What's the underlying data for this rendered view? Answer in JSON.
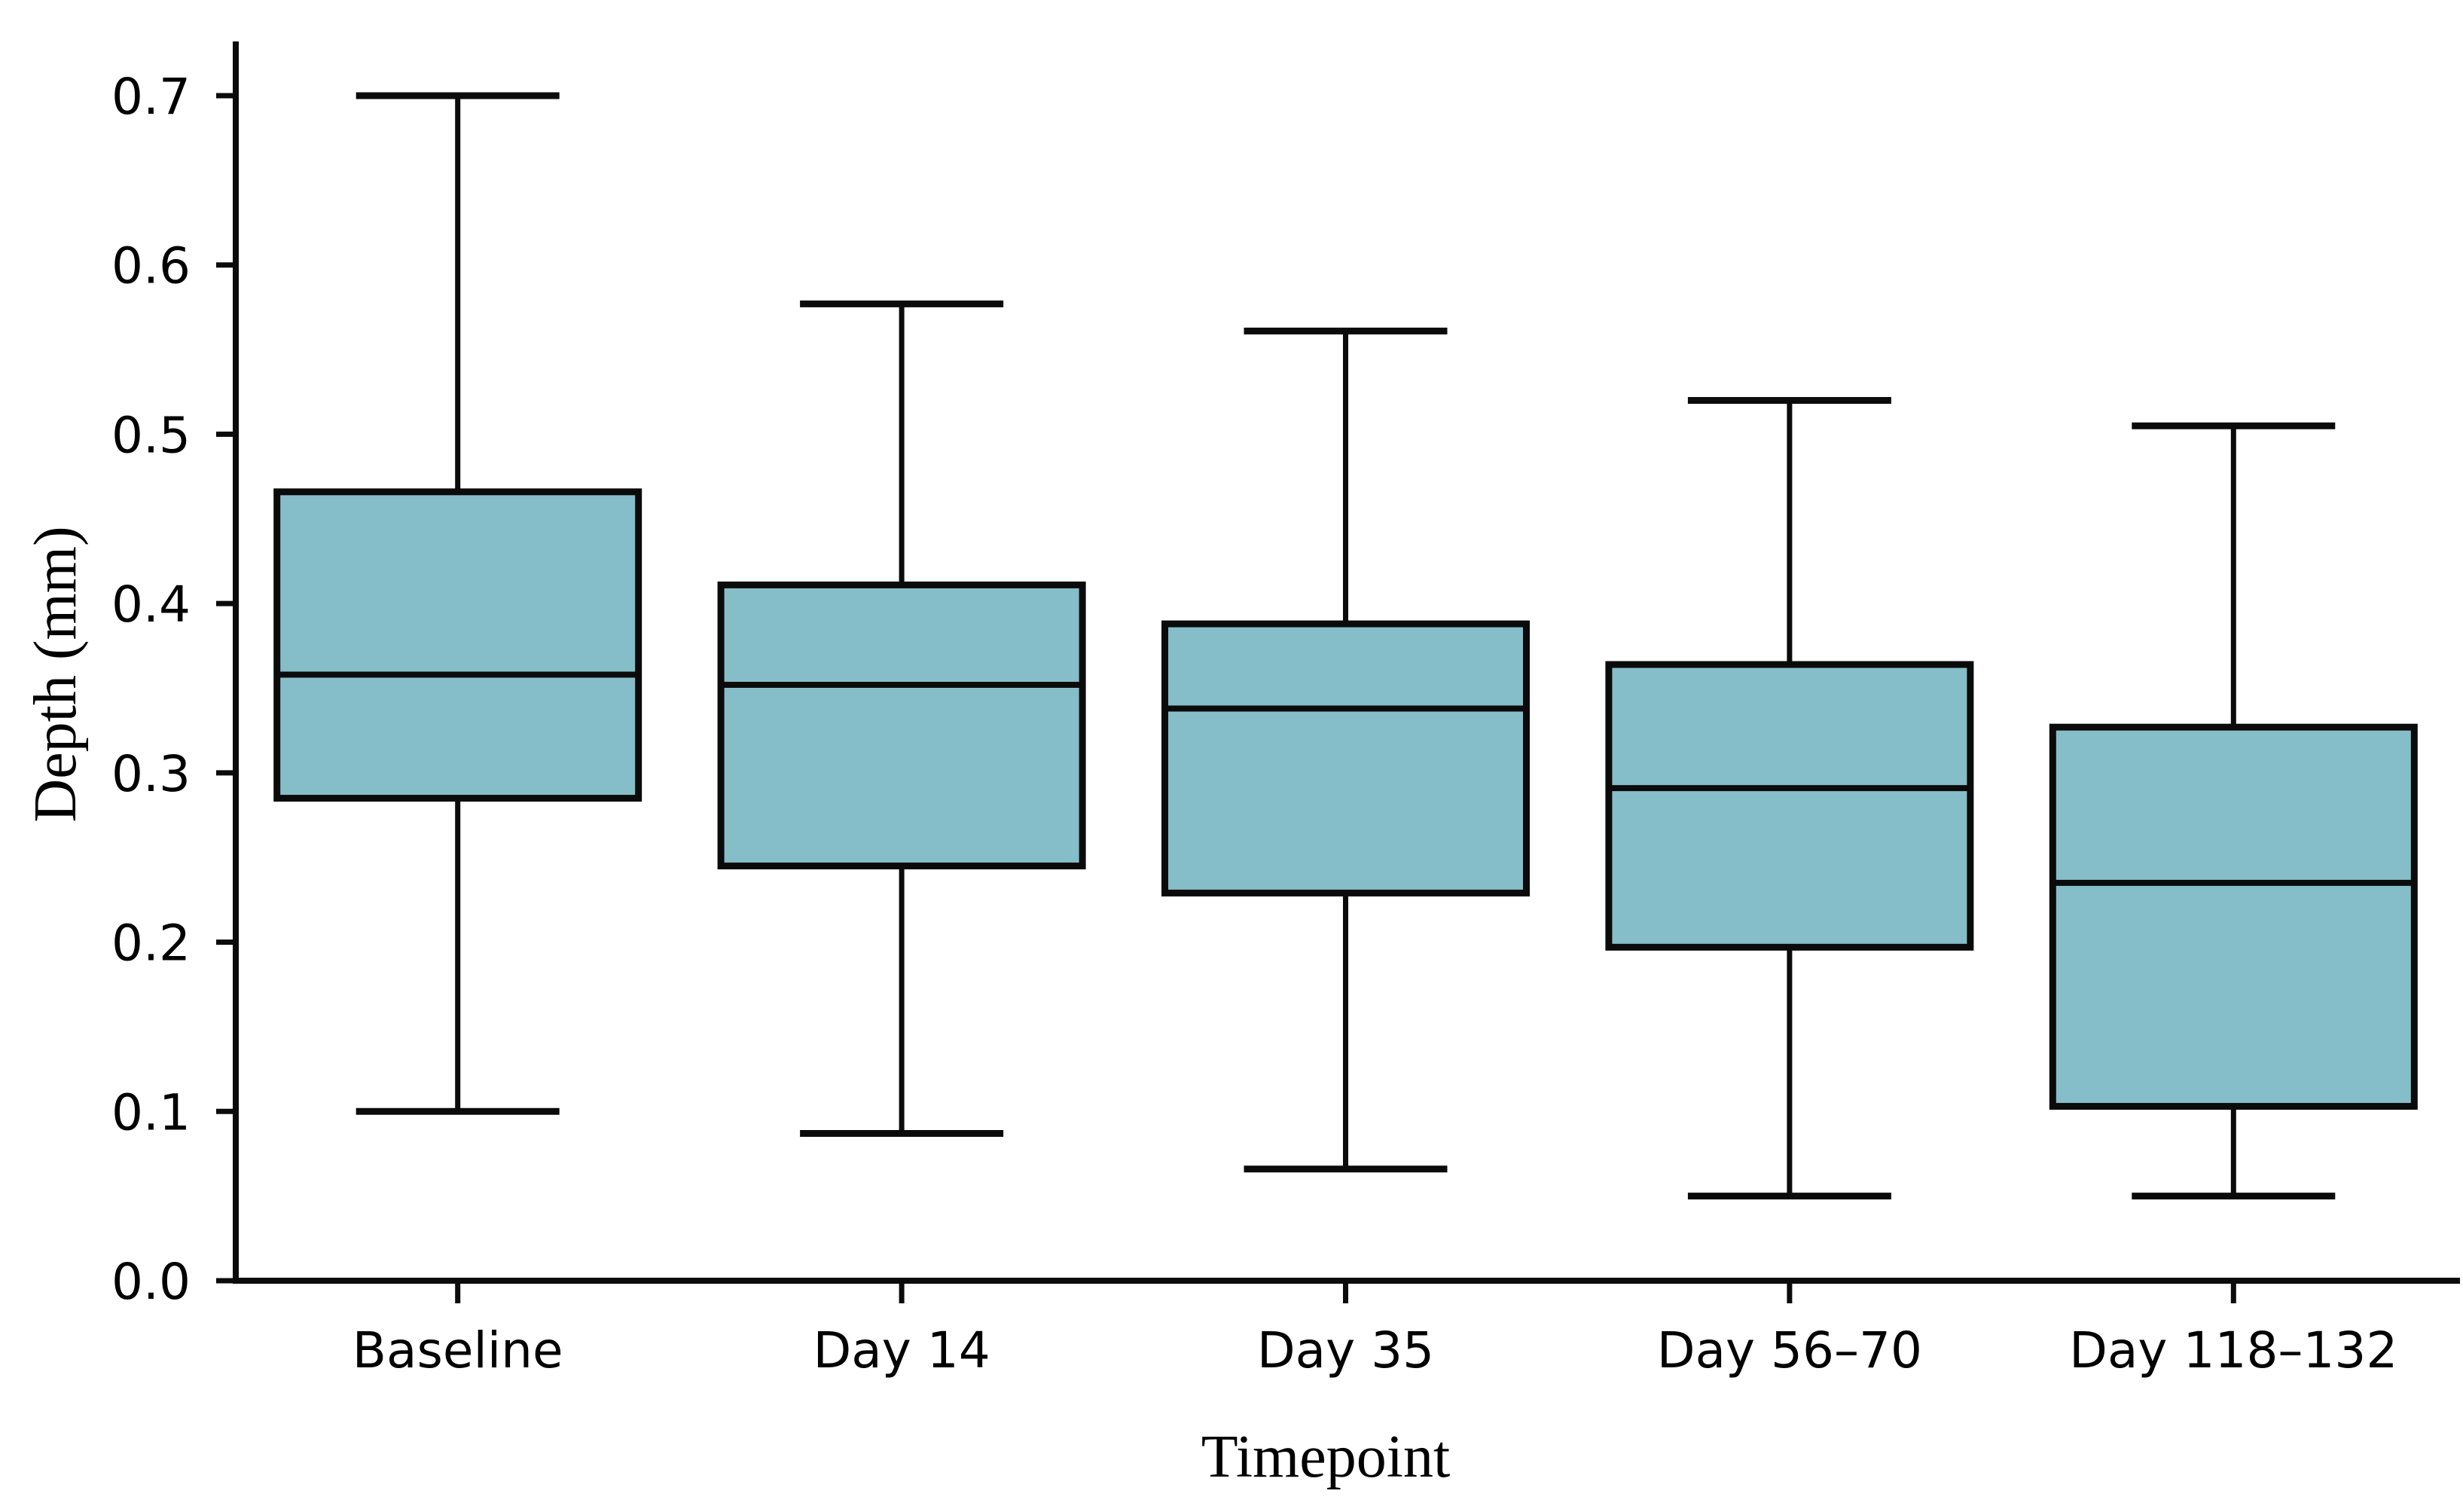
{
  "chart_data": {
    "type": "box",
    "title": "",
    "xlabel": "Timepoint",
    "ylabel": "Depth (mm)",
    "categories": [
      "Baseline",
      "Day 14",
      "Day 35",
      "Day 56–70",
      "Day 118–132"
    ],
    "series": [
      {
        "name": "Baseline",
        "whisker_low": 0.1,
        "q1": 0.285,
        "median": 0.358,
        "q3": 0.466,
        "whisker_high": 0.7
      },
      {
        "name": "Day 14",
        "whisker_low": 0.087,
        "q1": 0.245,
        "median": 0.352,
        "q3": 0.411,
        "whisker_high": 0.577
      },
      {
        "name": "Day 35",
        "whisker_low": 0.066,
        "q1": 0.229,
        "median": 0.338,
        "q3": 0.388,
        "whisker_high": 0.561
      },
      {
        "name": "Day 56–70",
        "whisker_low": 0.05,
        "q1": 0.197,
        "median": 0.291,
        "q3": 0.364,
        "whisker_high": 0.52
      },
      {
        "name": "Day 118–132",
        "whisker_low": 0.05,
        "q1": 0.103,
        "median": 0.235,
        "q3": 0.327,
        "whisker_high": 0.505
      }
    ],
    "ylim": [
      0.0,
      0.7
    ],
    "yticks": [
      0.0,
      0.1,
      0.2,
      0.3,
      0.4,
      0.5,
      0.6,
      0.7
    ],
    "ytick_labels": [
      "0.0",
      "0.1",
      "0.2",
      "0.3",
      "0.4",
      "0.5",
      "0.6",
      "0.7"
    ],
    "grid": false,
    "legend_position": "none",
    "colors": {
      "box_fill": "#85bec9",
      "line": "#0b0b0b",
      "text": "#000000",
      "background": "#ffffff"
    }
  }
}
